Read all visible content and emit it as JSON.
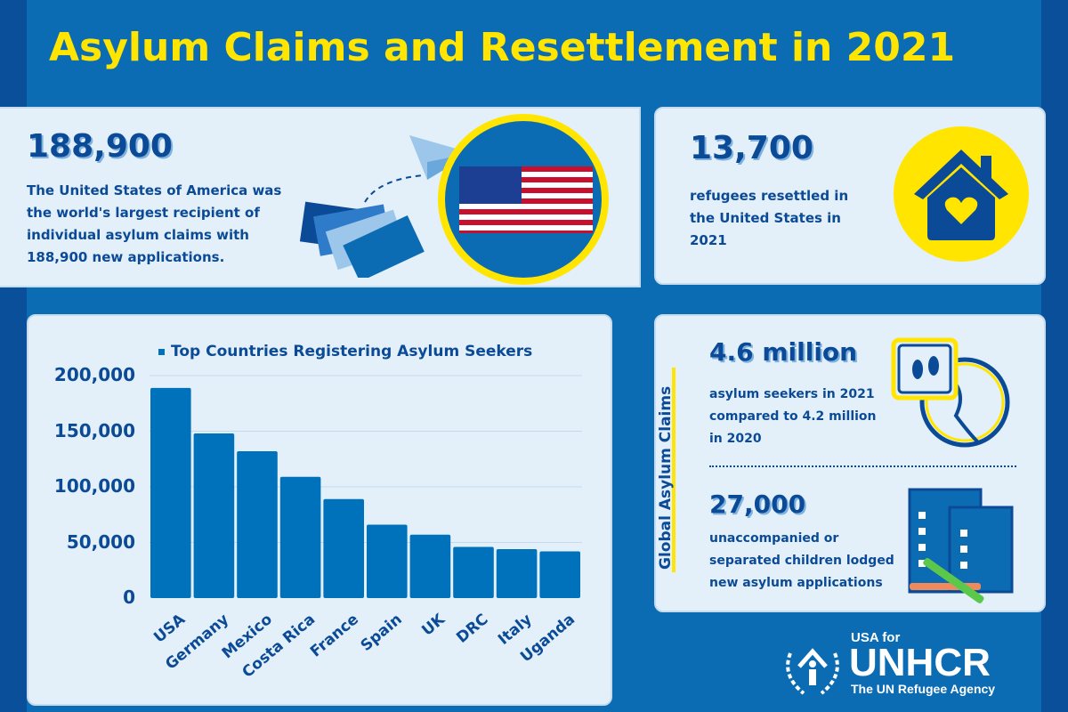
{
  "title": "Asylum Claims and Resettlement in 2021",
  "colors": {
    "background": "#0b6cb4",
    "accent": "#ffe500",
    "bar": "#0072bb",
    "text": "#0b4a96"
  },
  "usa_card": {
    "number": "188,900",
    "text": "The United States of America was the world's largest recipient of individual asylum claims with 188,900 new applications.",
    "icons": [
      "papers-icon",
      "paper-plane-icon",
      "usa-flag-map-icon"
    ]
  },
  "resettle_card": {
    "number": "13,700",
    "text": "refugees resettled in the United States in 2021",
    "icon": "house-heart-icon"
  },
  "global_card": {
    "side_label": "Global Asylum Claims",
    "stat1": {
      "number": "4.6 million",
      "text": "asylum seekers in 2021 compared to 4.2 million in 2020",
      "icon": "globe-footprints-icon"
    },
    "stat2": {
      "number": "27,000",
      "text": "unaccompanied or separated children lodged new asylum applications",
      "icon": "forms-crayons-icon"
    }
  },
  "logo": {
    "line1": "USA for",
    "line2": "UNHCR",
    "line3": "The UN Refugee Agency"
  },
  "chart_data": {
    "type": "bar",
    "title": "Top Countries Registering Asylum Seekers",
    "categories": [
      "USA",
      "Germany",
      "Mexico",
      "Costa Rica",
      "France",
      "Spain",
      "UK",
      "DRC",
      "Italy",
      "Uganda"
    ],
    "values": [
      188900,
      148000,
      132000,
      109000,
      89000,
      66000,
      57000,
      46000,
      44000,
      42000
    ],
    "yticks": [
      "0",
      "50,000",
      "100,000",
      "150,000",
      "200,000"
    ],
    "ylim": [
      0,
      200000
    ],
    "grid": true,
    "legend": "top"
  }
}
